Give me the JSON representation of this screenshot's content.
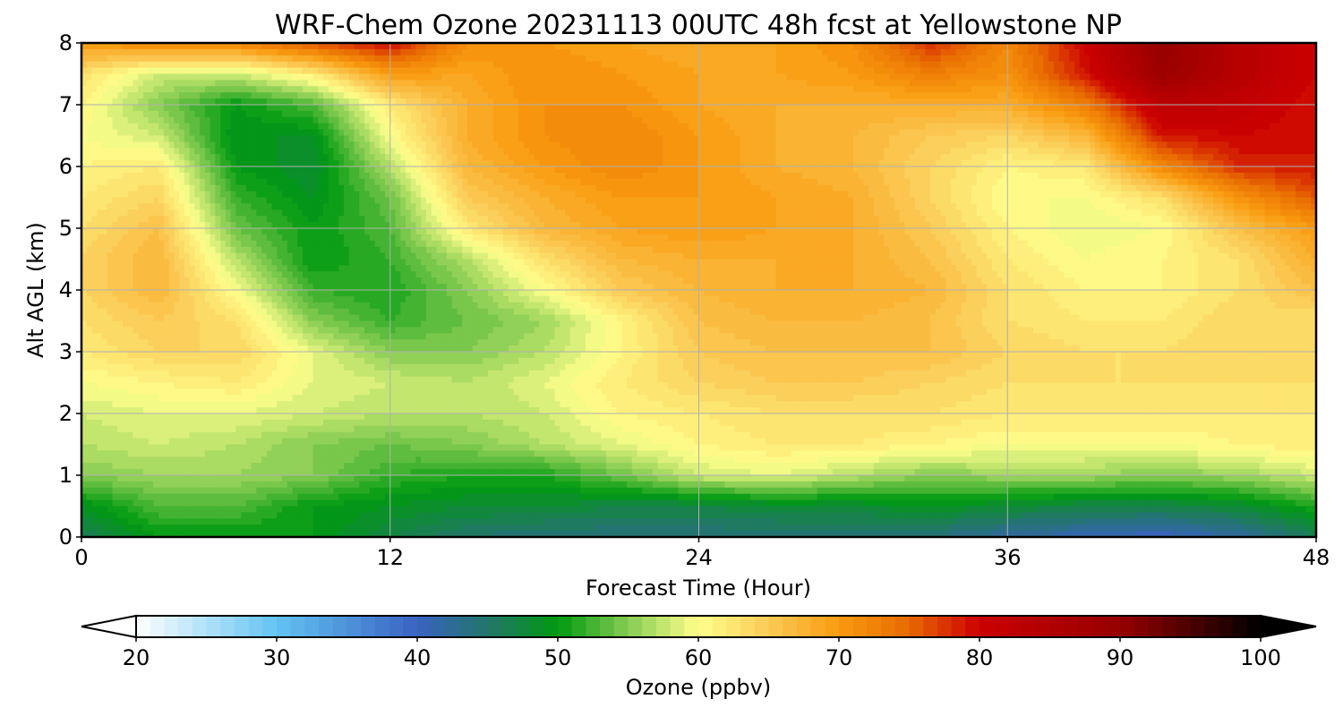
{
  "chart_data": {
    "type": "heatmap",
    "title": "WRF-Chem Ozone  20231113 00UTC 48h fcst at Yellowstone NP",
    "xlabel": "Forecast Time (Hour)",
    "ylabel": "Alt AGL (km)",
    "xlim": [
      0,
      48
    ],
    "ylim": [
      0,
      8
    ],
    "xticks": [
      "0",
      "12",
      "24",
      "36",
      "48"
    ],
    "yticks": [
      "0",
      "1",
      "2",
      "3",
      "4",
      "5",
      "6",
      "7",
      "8"
    ],
    "grid": true,
    "colorbar": {
      "label": "Ozone  (ppbv)",
      "range": [
        20,
        100
      ],
      "ticks": [
        "20",
        "30",
        "40",
        "50",
        "60",
        "70",
        "80",
        "90",
        "100"
      ],
      "extend": "both",
      "levels": 80,
      "stops": [
        {
          "v": 20,
          "color": "#ffffff"
        },
        {
          "v": 30,
          "color": "#62c3f2"
        },
        {
          "v": 40,
          "color": "#3a62c2"
        },
        {
          "v": 45,
          "color": "#22766a"
        },
        {
          "v": 50,
          "color": "#009a10"
        },
        {
          "v": 55,
          "color": "#86cc52"
        },
        {
          "v": 60,
          "color": "#ffff8c"
        },
        {
          "v": 65,
          "color": "#fbca55"
        },
        {
          "v": 70,
          "color": "#f99b10"
        },
        {
          "v": 75,
          "color": "#e86a00"
        },
        {
          "v": 80,
          "color": "#cc0000"
        },
        {
          "v": 90,
          "color": "#960000"
        },
        {
          "v": 100,
          "color": "#000000"
        }
      ]
    },
    "x": [
      0,
      3,
      6,
      9,
      12,
      15,
      18,
      21,
      24,
      27,
      30,
      33,
      36,
      39,
      42,
      45,
      48
    ],
    "y": [
      0,
      0.5,
      1,
      1.5,
      2,
      2.5,
      3,
      3.5,
      4,
      4.5,
      5,
      5.5,
      6,
      6.5,
      7,
      7.5,
      8
    ],
    "z": [
      [
        46,
        50,
        50,
        50,
        47,
        45,
        44,
        44,
        44,
        44,
        44,
        44,
        42,
        41,
        40,
        42,
        46
      ],
      [
        49,
        53,
        53,
        50,
        49,
        48,
        48,
        47,
        47,
        48,
        48,
        49,
        48,
        47,
        47,
        48,
        51
      ],
      [
        55,
        56,
        56,
        55,
        52,
        51,
        51,
        54,
        58,
        59,
        57,
        55,
        56,
        56,
        55,
        56,
        58
      ],
      [
        57,
        58,
        57,
        55,
        54,
        55,
        57,
        59,
        61,
        62,
        62,
        61,
        60,
        60,
        60,
        61,
        62
      ],
      [
        58,
        59,
        59,
        58,
        57,
        57,
        58,
        61,
        62,
        63,
        63,
        63,
        62,
        62,
        62,
        62,
        62
      ],
      [
        60,
        61,
        62,
        59,
        58,
        57,
        59,
        62,
        64,
        65,
        65,
        64,
        63,
        63,
        63,
        63,
        63
      ],
      [
        62,
        64,
        64,
        59,
        55,
        55,
        57,
        61,
        65,
        66,
        66,
        66,
        64,
        63,
        63,
        64,
        63
      ],
      [
        63,
        65,
        63,
        55,
        52,
        54,
        56,
        61,
        66,
        67,
        67,
        66,
        63,
        62,
        62,
        64,
        63
      ],
      [
        64,
        67,
        60,
        52,
        51,
        55,
        60,
        65,
        67,
        68,
        68,
        67,
        63,
        61,
        61,
        63,
        66
      ],
      [
        64,
        67,
        57,
        50,
        52,
        57,
        63,
        67,
        68,
        68,
        68,
        66,
        62,
        60,
        61,
        63,
        68
      ],
      [
        63,
        66,
        54,
        50,
        53,
        62,
        67,
        69,
        70,
        69,
        68,
        65,
        61,
        59,
        60,
        66,
        70
      ],
      [
        62,
        64,
        52,
        49,
        54,
        65,
        68,
        70,
        70,
        69,
        68,
        64,
        60,
        60,
        63,
        71,
        76
      ],
      [
        61,
        62,
        50,
        48,
        57,
        67,
        70,
        72,
        70,
        68,
        67,
        64,
        61,
        62,
        72,
        78,
        79
      ],
      [
        60,
        58,
        49,
        49,
        60,
        68,
        71,
        72,
        70,
        68,
        67,
        65,
        64,
        67,
        79,
        80,
        79
      ],
      [
        61,
        55,
        50,
        53,
        62,
        68,
        71,
        71,
        69,
        68,
        68,
        68,
        68,
        73,
        83,
        82,
        79
      ],
      [
        63,
        58,
        58,
        62,
        70,
        69,
        71,
        70,
        69,
        69,
        70,
        73,
        71,
        79,
        89,
        84,
        80
      ],
      [
        70,
        72,
        72,
        76,
        80,
        71,
        70,
        69,
        68,
        69,
        71,
        78,
        72,
        80,
        90,
        84,
        80
      ]
    ]
  }
}
